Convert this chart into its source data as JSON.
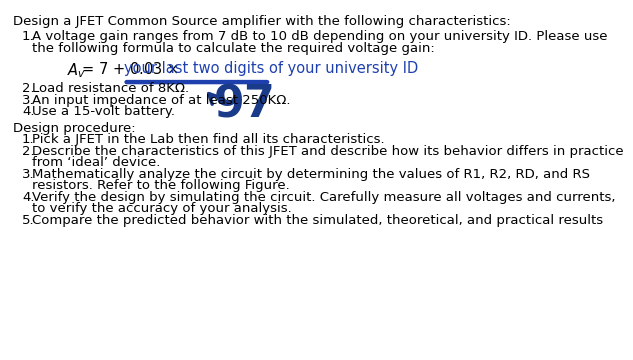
{
  "bg_color": "#ffffff",
  "text_color": "#000000",
  "blue_color": "#1E40AF",
  "dark_blue": "#1a3a8a",
  "header": "Design a JFET Common Source amplifier with the following characteristics:",
  "item1_line1": "A voltage gain ranges from 7 dB to 10 dB depending on your university ID. Please use",
  "item1_line2": "the following formula to calculate the required voltage gain:",
  "item2": "Load resistance of 8KΩ.",
  "item3": "An input impedance of at least 250KΩ.",
  "item4": "Use a 15-volt battery.",
  "design_header": "Design procedure:",
  "proc1": "Pick a JFET in the Lab then find all its characteristics.",
  "proc2_line1": "Describe the characteristics of this JFET and describe how its behavior differs in practice",
  "proc2_line2": "from ‘ideal’ device.",
  "proc3_line1": "Mathematically analyze the circuit by determining the values of R1, R2, RD, and RS",
  "proc3_line2": "resistors. Refer to the following Figure.",
  "proc4_line1": "Verify the design by simulating the circuit. Carefully measure all voltages and currents,",
  "proc4_line2": "to verify the accuracy of your analysis.",
  "proc5": "Compare the predicted behavior with the simulated, theoretical, and practical results",
  "number_97": "97",
  "underline_text": "your last two digits of your university ID",
  "font_size_main": 9.5,
  "font_size_formula": 10.5,
  "font_size_97": 32
}
